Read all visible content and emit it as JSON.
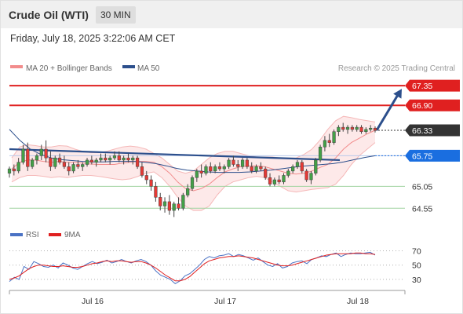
{
  "header": {
    "title": "Crude Oil (WTI)",
    "timeframe": "30 MIN"
  },
  "timestamp": "Friday, July 18, 2025 3:22:06 AM CET",
  "chart_data": [
    {
      "type": "candlestick",
      "title": "",
      "legend": [
        {
          "name": "MA 20 + Bollinger Bands",
          "color": "#f28c8c"
        },
        {
          "name": "MA 50",
          "color": "#2c4f8c"
        }
      ],
      "copyright": "Research © 2025 Trading Central",
      "x_ticks": [
        "Jul 16",
        "Jul 17",
        "Jul 18"
      ],
      "ylim": [
        64.25,
        67.55
      ],
      "levels": [
        {
          "value": 67.35,
          "label": "67.35",
          "kind": "resistance",
          "color": "#e02020"
        },
        {
          "value": 66.9,
          "label": "66.90",
          "kind": "resistance",
          "color": "#e02020"
        },
        {
          "value": 66.33,
          "label": "66.33",
          "kind": "last",
          "color": "#333333"
        },
        {
          "value": 65.75,
          "label": "65.75",
          "kind": "pivot",
          "color": "#1a6ee0"
        },
        {
          "value": 65.05,
          "label": "65.05",
          "kind": "support",
          "color": "#5cb85c"
        },
        {
          "value": 64.55,
          "label": "64.55",
          "kind": "support",
          "color": "#5cb85c"
        }
      ],
      "candles": [
        [
          65.35,
          65.5,
          65.25,
          65.45
        ],
        [
          65.45,
          65.55,
          65.3,
          65.4
        ],
        [
          65.4,
          65.7,
          65.35,
          65.6
        ],
        [
          65.6,
          66.0,
          65.55,
          65.9
        ],
        [
          65.9,
          66.05,
          65.4,
          65.5
        ],
        [
          65.5,
          65.7,
          65.45,
          65.65
        ],
        [
          65.65,
          65.8,
          65.55,
          65.75
        ],
        [
          65.75,
          66.0,
          65.65,
          65.9
        ],
        [
          65.9,
          66.1,
          65.6,
          65.7
        ],
        [
          65.7,
          65.85,
          65.4,
          65.5
        ],
        [
          65.5,
          65.75,
          65.45,
          65.7
        ],
        [
          65.7,
          65.8,
          65.55,
          65.6
        ],
        [
          65.6,
          65.75,
          65.45,
          65.5
        ],
        [
          65.5,
          65.6,
          65.3,
          65.4
        ],
        [
          65.4,
          65.6,
          65.35,
          65.55
        ],
        [
          65.55,
          65.65,
          65.45,
          65.5
        ],
        [
          65.5,
          65.6,
          65.4,
          65.55
        ],
        [
          65.55,
          65.7,
          65.5,
          65.65
        ],
        [
          65.65,
          65.75,
          65.55,
          65.6
        ],
        [
          65.6,
          65.7,
          65.5,
          65.65
        ],
        [
          65.65,
          65.8,
          65.6,
          65.7
        ],
        [
          65.7,
          65.8,
          65.6,
          65.65
        ],
        [
          65.65,
          65.75,
          65.55,
          65.7
        ],
        [
          65.7,
          65.85,
          65.65,
          65.75
        ],
        [
          65.75,
          65.85,
          65.6,
          65.65
        ],
        [
          65.65,
          65.75,
          65.55,
          65.7
        ],
        [
          65.7,
          65.8,
          65.6,
          65.65
        ],
        [
          65.65,
          65.75,
          65.55,
          65.7
        ],
        [
          65.7,
          65.75,
          65.45,
          65.5
        ],
        [
          65.5,
          65.6,
          65.25,
          65.3
        ],
        [
          65.3,
          65.4,
          65.1,
          65.2
        ],
        [
          65.2,
          65.3,
          64.95,
          65.05
        ],
        [
          65.05,
          65.15,
          64.7,
          64.8
        ],
        [
          64.8,
          64.9,
          64.5,
          64.6
        ],
        [
          64.6,
          64.8,
          64.45,
          64.7
        ],
        [
          64.7,
          64.85,
          64.4,
          64.5
        ],
        [
          64.5,
          64.7,
          64.35,
          64.65
        ],
        [
          64.65,
          64.8,
          64.5,
          64.55
        ],
        [
          64.55,
          64.9,
          64.5,
          64.85
        ],
        [
          64.85,
          65.1,
          64.8,
          65.0
        ],
        [
          65.0,
          65.3,
          64.95,
          65.25
        ],
        [
          65.25,
          65.45,
          65.15,
          65.4
        ],
        [
          65.4,
          65.55,
          65.25,
          65.35
        ],
        [
          65.35,
          65.55,
          65.3,
          65.5
        ],
        [
          65.5,
          65.6,
          65.35,
          65.4
        ],
        [
          65.4,
          65.55,
          65.35,
          65.5
        ],
        [
          65.5,
          65.6,
          65.4,
          65.45
        ],
        [
          65.45,
          65.55,
          65.35,
          65.5
        ],
        [
          65.5,
          65.7,
          65.45,
          65.65
        ],
        [
          65.65,
          65.75,
          65.5,
          65.55
        ],
        [
          65.55,
          65.65,
          65.4,
          65.5
        ],
        [
          65.5,
          65.7,
          65.45,
          65.65
        ],
        [
          65.65,
          65.7,
          65.45,
          65.5
        ],
        [
          65.5,
          65.6,
          65.35,
          65.4
        ],
        [
          65.4,
          65.55,
          65.35,
          65.5
        ],
        [
          65.5,
          65.6,
          65.4,
          65.45
        ],
        [
          65.45,
          65.5,
          65.2,
          65.25
        ],
        [
          65.25,
          65.35,
          65.05,
          65.1
        ],
        [
          65.1,
          65.25,
          65.05,
          65.2
        ],
        [
          65.2,
          65.3,
          65.1,
          65.15
        ],
        [
          65.15,
          65.35,
          65.1,
          65.3
        ],
        [
          65.3,
          65.45,
          65.25,
          65.4
        ],
        [
          65.4,
          65.55,
          65.35,
          65.5
        ],
        [
          65.5,
          65.65,
          65.45,
          65.6
        ],
        [
          65.6,
          65.65,
          65.35,
          65.4
        ],
        [
          65.4,
          65.45,
          65.15,
          65.2
        ],
        [
          65.2,
          65.4,
          65.1,
          65.35
        ],
        [
          65.35,
          65.7,
          65.3,
          65.65
        ],
        [
          65.65,
          66.0,
          65.6,
          65.95
        ],
        [
          65.95,
          66.2,
          65.85,
          66.1
        ],
        [
          66.1,
          66.25,
          65.95,
          66.05
        ],
        [
          66.05,
          66.35,
          66.0,
          66.3
        ],
        [
          66.3,
          66.45,
          66.2,
          66.4
        ],
        [
          66.4,
          66.5,
          66.3,
          66.35
        ],
        [
          66.35,
          66.45,
          66.25,
          66.4
        ],
        [
          66.4,
          66.45,
          66.3,
          66.35
        ],
        [
          66.35,
          66.45,
          66.3,
          66.4
        ],
        [
          66.4,
          66.45,
          66.25,
          66.3
        ],
        [
          66.3,
          66.4,
          66.25,
          66.35
        ],
        [
          66.35,
          66.45,
          66.3,
          66.38
        ],
        [
          66.38,
          66.42,
          66.28,
          66.33
        ]
      ],
      "ma20": [
        65.45,
        65.6,
        65.65,
        65.65,
        65.62,
        65.6,
        65.62,
        65.6,
        65.6,
        65.58,
        65.56,
        65.55,
        65.55,
        65.55,
        65.58,
        65.6,
        65.62,
        65.62,
        65.6,
        65.5,
        65.35,
        65.15,
        65.0,
        64.95,
        65.0,
        65.1,
        65.25,
        65.38,
        65.45,
        65.5,
        65.52,
        65.52,
        65.5,
        65.45,
        65.4,
        65.35,
        65.33,
        65.35,
        65.4,
        65.48,
        65.55,
        65.7,
        65.9,
        66.05,
        66.15,
        66.25,
        66.33
      ],
      "bb_upper": [
        65.7,
        65.95,
        66.0,
        65.98,
        65.95,
        65.95,
        65.98,
        65.97,
        65.9,
        65.85,
        65.82,
        65.82,
        65.85,
        65.9,
        65.95,
        65.97,
        65.95,
        65.9,
        65.8,
        65.7,
        65.55,
        65.4,
        65.35,
        65.4,
        65.55,
        65.7,
        65.8,
        65.85,
        65.85,
        65.8,
        65.75,
        65.72,
        65.72,
        65.72,
        65.7,
        65.7,
        65.7,
        65.78,
        65.9,
        66.1,
        66.35,
        66.55,
        66.65,
        66.62,
        66.58,
        66.55,
        66.52
      ],
      "bb_lower": [
        65.15,
        65.25,
        65.3,
        65.3,
        65.28,
        65.25,
        65.27,
        65.25,
        65.28,
        65.3,
        65.3,
        65.28,
        65.25,
        65.22,
        65.2,
        65.22,
        65.28,
        65.35,
        65.38,
        65.25,
        65.05,
        64.8,
        64.6,
        64.5,
        64.5,
        64.6,
        64.85,
        65.05,
        65.15,
        65.2,
        65.25,
        65.28,
        65.25,
        65.15,
        65.05,
        64.95,
        64.92,
        64.95,
        64.98,
        65.0,
        65.02,
        65.1,
        65.3,
        65.55,
        65.75,
        65.9,
        66.05
      ],
      "ma50": [
        66.35,
        66.1,
        65.9,
        65.78,
        65.7,
        65.66,
        65.64,
        65.62,
        65.61,
        65.61,
        65.62,
        65.62,
        65.62,
        65.6,
        65.57,
        65.52,
        65.46,
        65.42,
        65.4,
        65.38,
        65.37,
        65.37,
        65.37,
        65.38,
        65.4,
        65.42,
        65.45,
        65.48,
        65.51,
        65.53,
        65.55,
        65.57,
        65.61,
        65.66,
        65.71,
        65.75
      ],
      "trendline": {
        "from": [
          0,
          65.9
        ],
        "to": [
          75,
          65.65
        ]
      }
    },
    {
      "type": "line",
      "title": "",
      "legend": [
        {
          "name": "RSI",
          "color": "#4a72c4"
        },
        {
          "name": "9MA",
          "color": "#e02020"
        }
      ],
      "ylim": [
        20,
        75
      ],
      "y_ticks": [
        70,
        50,
        30
      ],
      "reference_levels": [
        70,
        50,
        30
      ],
      "rsi": [
        27,
        33,
        30,
        48,
        44,
        55,
        52,
        48,
        47,
        50,
        46,
        53,
        50,
        46,
        44,
        48,
        52,
        55,
        52,
        54,
        57,
        53,
        55,
        58,
        55,
        53,
        56,
        58,
        55,
        50,
        42,
        36,
        33,
        30,
        24,
        28,
        35,
        38,
        44,
        50,
        58,
        62,
        60,
        63,
        64,
        66,
        62,
        65,
        63,
        60,
        57,
        60,
        55,
        50,
        48,
        52,
        46,
        48,
        53,
        55,
        56,
        52,
        58,
        60,
        63,
        62,
        65,
        67,
        62,
        65,
        67,
        66,
        66,
        67,
        68,
        64
      ],
      "ma9": [
        30,
        32,
        35,
        40,
        45,
        48,
        50,
        50,
        49,
        48,
        48,
        49,
        48,
        47,
        47,
        48,
        50,
        52,
        53,
        55,
        56,
        55,
        56,
        56,
        55,
        54,
        55,
        55,
        53,
        50,
        46,
        41,
        36,
        32,
        28,
        28,
        30,
        34,
        40,
        46,
        52,
        56,
        58,
        60,
        61,
        62,
        62,
        63,
        62,
        61,
        60,
        58,
        56,
        54,
        52,
        50,
        49,
        49,
        50,
        52,
        54,
        56,
        58,
        60,
        62,
        64,
        65,
        66,
        66,
        66,
        66,
        67,
        67,
        66,
        66,
        65
      ]
    }
  ]
}
